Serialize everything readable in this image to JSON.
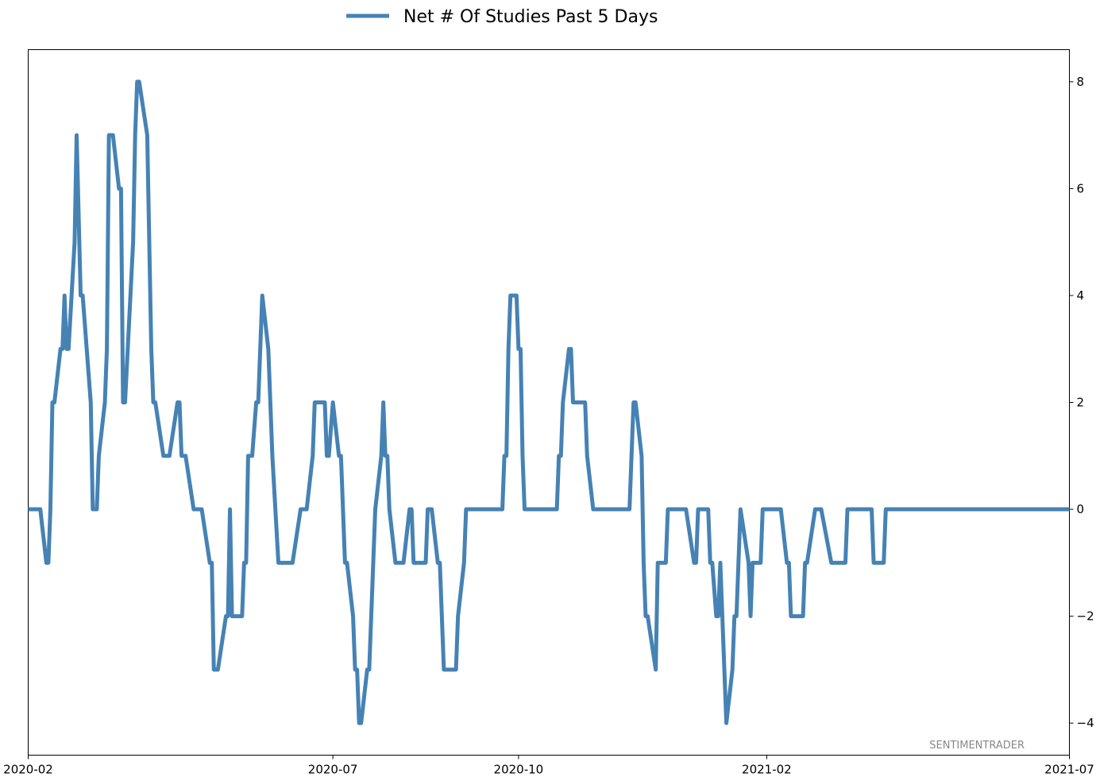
{
  "chart_data": {
    "type": "line",
    "legend": {
      "label": "Net # Of Studies Past 5 Days",
      "placement": "top-center"
    },
    "watermark": "SENTIMENTRADER",
    "color": "#4682b4",
    "grid": false,
    "y_axis_side": "right",
    "ylim": [
      -4.6,
      8.6
    ],
    "y_ticks": [
      {
        "value": 8,
        "label": "8"
      },
      {
        "value": 6,
        "label": "6"
      },
      {
        "value": 4,
        "label": "4"
      },
      {
        "value": 2,
        "label": "2"
      },
      {
        "value": 0,
        "label": "0"
      },
      {
        "value": -2,
        "label": "−2"
      },
      {
        "value": -4,
        "label": "−4"
      }
    ],
    "xlim": [
      "2020-02-01",
      "2021-07-01"
    ],
    "x_ticks": [
      {
        "date": "2020-02-01",
        "label": "2020-02"
      },
      {
        "date": "2020-07-01",
        "label": "2020-07"
      },
      {
        "date": "2020-10-01",
        "label": "2020-10"
      },
      {
        "date": "2021-02-01",
        "label": "2021-02"
      },
      {
        "date": "2021-07-01",
        "label": "2021-07"
      }
    ],
    "series": [
      {
        "name": "Net # Of Studies Past 5 Days",
        "points": [
          [
            "2020-02-01",
            0
          ],
          [
            "2020-02-07",
            0
          ],
          [
            "2020-02-10",
            -1
          ],
          [
            "2020-02-11",
            -1
          ],
          [
            "2020-02-12",
            0
          ],
          [
            "2020-02-13",
            2
          ],
          [
            "2020-02-14",
            2
          ],
          [
            "2020-02-17",
            3
          ],
          [
            "2020-02-18",
            3
          ],
          [
            "2020-02-19",
            4
          ],
          [
            "2020-02-20",
            3
          ],
          [
            "2020-02-21",
            3
          ],
          [
            "2020-02-24",
            5
          ],
          [
            "2020-02-25",
            7
          ],
          [
            "2020-02-27",
            4
          ],
          [
            "2020-02-28",
            4
          ],
          [
            "2020-03-03",
            2
          ],
          [
            "2020-03-04",
            0
          ],
          [
            "2020-03-06",
            0
          ],
          [
            "2020-03-07",
            1
          ],
          [
            "2020-03-10",
            2
          ],
          [
            "2020-03-11",
            3
          ],
          [
            "2020-03-12",
            7
          ],
          [
            "2020-03-14",
            7
          ],
          [
            "2020-03-17",
            6
          ],
          [
            "2020-03-18",
            6
          ],
          [
            "2020-03-19",
            2
          ],
          [
            "2020-03-20",
            2
          ],
          [
            "2020-03-24",
            5
          ],
          [
            "2020-03-25",
            7
          ],
          [
            "2020-03-26",
            8
          ],
          [
            "2020-03-27",
            8
          ],
          [
            "2020-03-31",
            7
          ],
          [
            "2020-04-02",
            3
          ],
          [
            "2020-04-03",
            2
          ],
          [
            "2020-04-04",
            2
          ],
          [
            "2020-04-08",
            1
          ],
          [
            "2020-04-11",
            1
          ],
          [
            "2020-04-15",
            2
          ],
          [
            "2020-04-16",
            2
          ],
          [
            "2020-04-17",
            1
          ],
          [
            "2020-04-19",
            1
          ],
          [
            "2020-04-23",
            0
          ],
          [
            "2020-04-27",
            0
          ],
          [
            "2020-05-01",
            -1
          ],
          [
            "2020-05-02",
            -1
          ],
          [
            "2020-05-03",
            -3
          ],
          [
            "2020-05-05",
            -3
          ],
          [
            "2020-05-09",
            -2
          ],
          [
            "2020-05-10",
            -2
          ],
          [
            "2020-05-11",
            0
          ],
          [
            "2020-05-12",
            -2
          ],
          [
            "2020-05-17",
            -2
          ],
          [
            "2020-05-18",
            -1
          ],
          [
            "2020-05-19",
            -1
          ],
          [
            "2020-05-20",
            1
          ],
          [
            "2020-05-22",
            1
          ],
          [
            "2020-05-24",
            2
          ],
          [
            "2020-05-25",
            2
          ],
          [
            "2020-05-27",
            4
          ],
          [
            "2020-05-30",
            3
          ],
          [
            "2020-06-01",
            1
          ],
          [
            "2020-06-04",
            -1
          ],
          [
            "2020-06-11",
            -1
          ],
          [
            "2020-06-15",
            0
          ],
          [
            "2020-06-18",
            0
          ],
          [
            "2020-06-21",
            1
          ],
          [
            "2020-06-22",
            2
          ],
          [
            "2020-06-27",
            2
          ],
          [
            "2020-06-28",
            1
          ],
          [
            "2020-06-29",
            1
          ],
          [
            "2020-07-01",
            2
          ],
          [
            "2020-07-04",
            1
          ],
          [
            "2020-07-05",
            1
          ],
          [
            "2020-07-07",
            -1
          ],
          [
            "2020-07-08",
            -1
          ],
          [
            "2020-07-11",
            -2
          ],
          [
            "2020-07-12",
            -3
          ],
          [
            "2020-07-13",
            -3
          ],
          [
            "2020-07-14",
            -4
          ],
          [
            "2020-07-15",
            -4
          ],
          [
            "2020-07-18",
            -3
          ],
          [
            "2020-07-19",
            -3
          ],
          [
            "2020-07-21",
            -1
          ],
          [
            "2020-07-22",
            0
          ],
          [
            "2020-07-25",
            1
          ],
          [
            "2020-07-26",
            2
          ],
          [
            "2020-07-27",
            1
          ],
          [
            "2020-07-28",
            1
          ],
          [
            "2020-07-29",
            0
          ],
          [
            "2020-08-01",
            -1
          ],
          [
            "2020-08-05",
            -1
          ],
          [
            "2020-08-08",
            0
          ],
          [
            "2020-08-09",
            0
          ],
          [
            "2020-08-10",
            -1
          ],
          [
            "2020-08-16",
            -1
          ],
          [
            "2020-08-17",
            0
          ],
          [
            "2020-08-19",
            0
          ],
          [
            "2020-08-22",
            -1
          ],
          [
            "2020-08-23",
            -1
          ],
          [
            "2020-08-25",
            -3
          ],
          [
            "2020-08-31",
            -3
          ],
          [
            "2020-09-01",
            -2
          ],
          [
            "2020-09-04",
            -1
          ],
          [
            "2020-09-05",
            0
          ],
          [
            "2020-09-23",
            0
          ],
          [
            "2020-09-24",
            1
          ],
          [
            "2020-09-25",
            1
          ],
          [
            "2020-09-26",
            3
          ],
          [
            "2020-09-27",
            4
          ],
          [
            "2020-09-30",
            4
          ],
          [
            "2020-10-01",
            3
          ],
          [
            "2020-10-02",
            3
          ],
          [
            "2020-10-03",
            1
          ],
          [
            "2020-10-04",
            0
          ],
          [
            "2020-10-20",
            0
          ],
          [
            "2020-10-21",
            1
          ],
          [
            "2020-10-22",
            1
          ],
          [
            "2020-10-23",
            2
          ],
          [
            "2020-10-26",
            3
          ],
          [
            "2020-10-27",
            3
          ],
          [
            "2020-10-28",
            2
          ],
          [
            "2020-11-03",
            2
          ],
          [
            "2020-11-04",
            1
          ],
          [
            "2020-11-07",
            0
          ],
          [
            "2020-11-25",
            0
          ],
          [
            "2020-11-27",
            2
          ],
          [
            "2020-11-28",
            2
          ],
          [
            "2020-12-01",
            1
          ],
          [
            "2020-12-02",
            -1
          ],
          [
            "2020-12-03",
            -2
          ],
          [
            "2020-12-04",
            -2
          ],
          [
            "2020-12-08",
            -3
          ],
          [
            "2020-12-09",
            -1
          ],
          [
            "2020-12-13",
            -1
          ],
          [
            "2020-12-14",
            0
          ],
          [
            "2020-12-23",
            0
          ],
          [
            "2020-12-27",
            -1
          ],
          [
            "2020-12-28",
            -1
          ],
          [
            "2020-12-29",
            0
          ],
          [
            "2021-01-03",
            0
          ],
          [
            "2021-01-04",
            -1
          ],
          [
            "2021-01-05",
            -1
          ],
          [
            "2021-01-07",
            -2
          ],
          [
            "2021-01-08",
            -2
          ],
          [
            "2021-01-09",
            -1
          ],
          [
            "2021-01-12",
            -4
          ],
          [
            "2021-01-15",
            -3
          ],
          [
            "2021-01-16",
            -2
          ],
          [
            "2021-01-17",
            -2
          ],
          [
            "2021-01-19",
            0
          ],
          [
            "2021-01-23",
            -1
          ],
          [
            "2021-01-24",
            -2
          ],
          [
            "2021-01-25",
            -1
          ],
          [
            "2021-01-29",
            -1
          ],
          [
            "2021-01-30",
            0
          ],
          [
            "2021-02-08",
            0
          ],
          [
            "2021-02-11",
            -1
          ],
          [
            "2021-02-12",
            -1
          ],
          [
            "2021-02-13",
            -2
          ],
          [
            "2021-02-19",
            -2
          ],
          [
            "2021-02-20",
            -1
          ],
          [
            "2021-02-21",
            -1
          ],
          [
            "2021-02-25",
            0
          ],
          [
            "2021-02-28",
            0
          ],
          [
            "2021-03-05",
            -1
          ],
          [
            "2021-03-12",
            -1
          ],
          [
            "2021-03-13",
            0
          ],
          [
            "2021-03-25",
            0
          ],
          [
            "2021-03-26",
            -1
          ],
          [
            "2021-03-31",
            -1
          ],
          [
            "2021-04-01",
            0
          ],
          [
            "2021-07-01",
            0
          ]
        ]
      }
    ]
  }
}
